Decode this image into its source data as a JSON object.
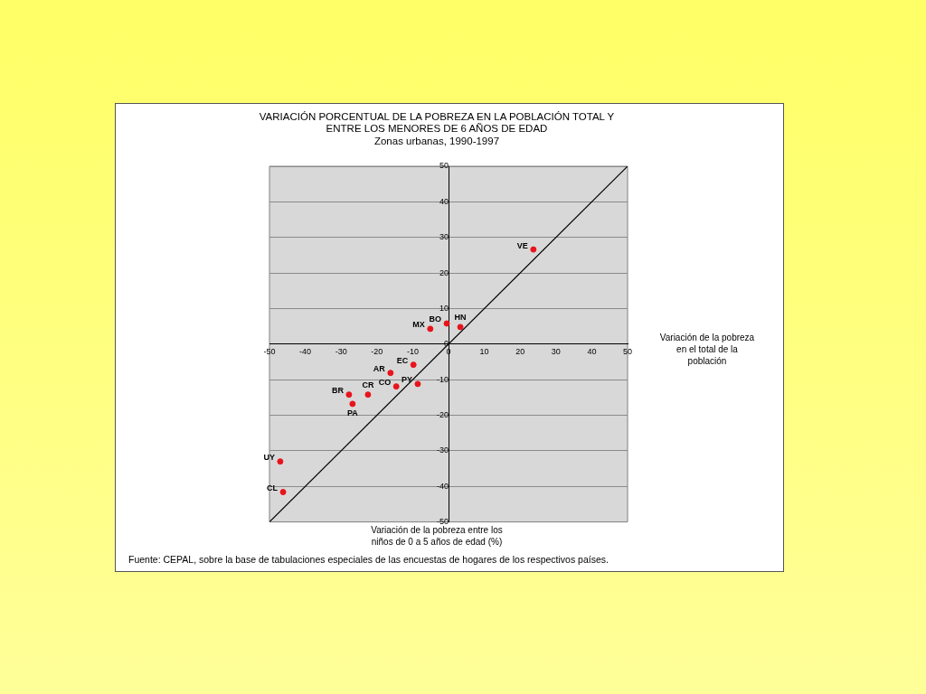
{
  "chart_data": {
    "type": "scatter",
    "title": "VARIACIÓN PORCENTUAL DE LA POBREZA EN LA POBLACIÓN TOTAL Y ENTRE LOS MENORES DE 6 AÑOS DE EDAD",
    "subtitle": "Zonas urbanas, 1990-1997",
    "xlabel": "Variación de la pobreza entre los niños de 0 a 5 años de edad (%)",
    "ylabel": "Variación de la pobreza en el total de la población",
    "series": [
      {
        "color": "#e8141c",
        "marker": "circle",
        "x": [
          23.7,
          3.3,
          -0.5,
          -5.1,
          -9.8,
          -16.2,
          -14.6,
          -8.6,
          -27.8,
          -22.5,
          -26.8,
          -47,
          -46.2
        ],
        "values": [
          26.6,
          4.8,
          5.8,
          4.3,
          -5.8,
          -8.1,
          -11.9,
          -11.2,
          -14.2,
          -14.2,
          -16.8,
          -33,
          -41.6
        ]
      },
      {
        "type": "line",
        "color": "#000000",
        "x": [
          -50,
          50
        ],
        "values": [
          -50,
          50
        ]
      }
    ],
    "annotations": [
      {
        "text": "VE",
        "x": 23.7,
        "y": 26.6
      },
      {
        "text": "HN",
        "x": 3.3,
        "y": 4.8
      },
      {
        "text": "BO",
        "x": -0.5,
        "y": 5.8
      },
      {
        "text": "MX",
        "x": -5.1,
        "y": 4.3
      },
      {
        "text": "EC",
        "x": -9.8,
        "y": -5.8
      },
      {
        "text": "AR",
        "x": -16.2,
        "y": -8.1
      },
      {
        "text": "CO",
        "x": -14.6,
        "y": -11.9
      },
      {
        "text": "PY",
        "x": -8.6,
        "y": -11.2
      },
      {
        "text": "BR",
        "x": -27.8,
        "y": -14.2
      },
      {
        "text": "CR",
        "x": -22.5,
        "y": -14.2
      },
      {
        "text": "PA",
        "x": -26.8,
        "y": -16.8
      },
      {
        "text": "UY",
        "x": -47,
        "y": -33
      },
      {
        "text": "CL",
        "x": -46.2,
        "y": -41.6
      },
      "Fuente: CEPAL, sobre la base de tabulaciones especiales de las encuestas de hogares de los respectivos países."
    ],
    "xlim": [
      -50,
      50
    ],
    "xticks": [
      -50,
      -40,
      -30,
      -20,
      -10,
      0,
      10,
      20,
      30,
      40,
      50
    ],
    "ylim": [
      -50,
      50
    ],
    "yticks": [
      -50,
      -40,
      -30,
      -20,
      -10,
      0,
      10,
      20,
      30,
      40,
      50
    ],
    "grid": "y",
    "legend": false
  }
}
